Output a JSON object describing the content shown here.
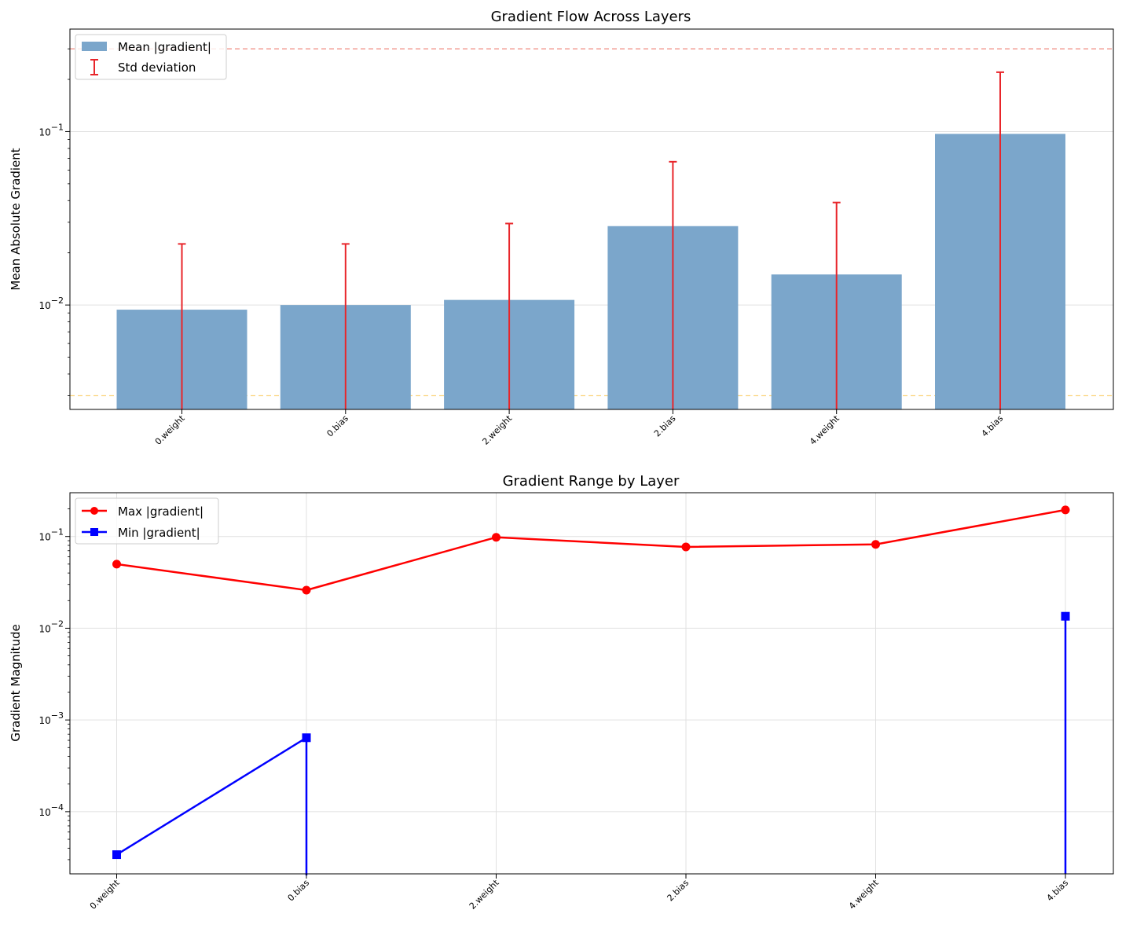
{
  "chart_data": [
    {
      "type": "bar",
      "title": "Gradient Flow Across Layers",
      "xlabel": "",
      "ylabel": "Mean Absolute Gradient",
      "yscale": "log",
      "ylim": [
        0.0025,
        0.39
      ],
      "grid": true,
      "legend_position": "top-left",
      "categories": [
        "0.weight",
        "0.bias",
        "2.weight",
        "2.bias",
        "4.weight",
        "4.bias"
      ],
      "series": [
        {
          "name": "Mean |gradient|",
          "values": [
            0.0094,
            0.01,
            0.0107,
            0.0285,
            0.015,
            0.097
          ],
          "color": "#7ba6cb"
        },
        {
          "name": "Std deviation",
          "type": "errorbar",
          "upper": [
            0.0225,
            0.0225,
            0.0295,
            0.067,
            0.039,
            0.22
          ],
          "color": "#e8252a"
        }
      ],
      "reference_lines": [
        {
          "y": 0.3,
          "color": "#f08c80",
          "style": "dashed"
        },
        {
          "y": 0.003,
          "color": "#fbd57f",
          "style": "dashed"
        }
      ],
      "ytick_values": [
        0.01,
        0.1
      ],
      "ytick_labels": [
        {
          "base": "10",
          "exp": "−2"
        },
        {
          "base": "10",
          "exp": "−1"
        }
      ]
    },
    {
      "type": "line",
      "title": "Gradient Range by Layer",
      "xlabel": "",
      "ylabel": "Gradient Magnitude",
      "yscale": "log",
      "ylim": [
        2.1e-05,
        0.3
      ],
      "grid": true,
      "legend_position": "top-left",
      "categories": [
        "0.weight",
        "0.bias",
        "2.weight",
        "2.bias",
        "4.weight",
        "4.bias"
      ],
      "series": [
        {
          "name": "Max |gradient|",
          "values": [
            0.05,
            0.026,
            0.098,
            0.077,
            0.082,
            0.195
          ],
          "color": "#ff0000",
          "marker": "circle"
        },
        {
          "name": "Min |gradient|",
          "values": [
            3.4e-05,
            0.00064,
            0,
            0,
            0,
            0.0135
          ],
          "color": "#0000ff",
          "marker": "square"
        }
      ],
      "ytick_values": [
        0.0001,
        0.001,
        0.01,
        0.1
      ],
      "ytick_labels": [
        {
          "base": "10",
          "exp": "−4"
        },
        {
          "base": "10",
          "exp": "−3"
        },
        {
          "base": "10",
          "exp": "−2"
        },
        {
          "base": "10",
          "exp": "−1"
        }
      ]
    }
  ]
}
